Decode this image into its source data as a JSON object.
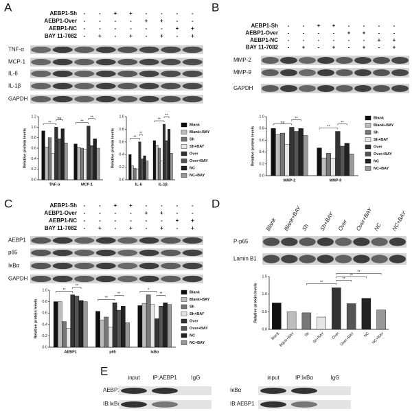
{
  "panels": [
    {
      "letter": "A",
      "treatments": [
        {
          "name": "AEBP1-Sh",
          "signs": [
            "-",
            "-",
            "+",
            "+",
            "-",
            "-",
            "-",
            "-"
          ]
        },
        {
          "name": "AEBP1-Over",
          "signs": [
            "-",
            "-",
            "-",
            "-",
            "+",
            "+",
            "-",
            "-"
          ]
        },
        {
          "name": "AEBP1-NC",
          "signs": [
            "-",
            "-",
            "-",
            "-",
            "-",
            "-",
            "+",
            "+"
          ]
        },
        {
          "name": "BAY 11-7082",
          "signs": [
            "-",
            "+",
            "-",
            "+",
            "-",
            "+",
            "-",
            "+"
          ]
        }
      ],
      "blots": [
        "TNF-α",
        "MCP-1",
        "IL-6",
        "IL-1β",
        "GAPDH"
      ]
    },
    {
      "letter": "B",
      "treatments": [
        {
          "name": "AEBP1-Sh",
          "signs": [
            "-",
            "-",
            "+",
            "+",
            "-",
            "-",
            "-",
            "-"
          ]
        },
        {
          "name": "AEBP1-Over",
          "signs": [
            "-",
            "-",
            "-",
            "-",
            "+",
            "+",
            "-",
            "-"
          ]
        },
        {
          "name": "AEBP1-NC",
          "signs": [
            "-",
            "-",
            "-",
            "-",
            "-",
            "-",
            "+",
            "+"
          ]
        },
        {
          "name": "BAY 11-7082",
          "signs": [
            "-",
            "+",
            "-",
            "+",
            "-",
            "+",
            "-",
            "+"
          ]
        }
      ],
      "blots": [
        "MMP-2",
        "MMP-9",
        "GAPDH"
      ]
    },
    {
      "letter": "C",
      "treatments": [
        {
          "name": "AEBP1-Sh",
          "signs": [
            "-",
            "-",
            "+",
            "+",
            "-",
            "-",
            "-",
            "-"
          ]
        },
        {
          "name": "AEBP1-Over",
          "signs": [
            "-",
            "-",
            "-",
            "-",
            "+",
            "+",
            "-",
            "-"
          ]
        },
        {
          "name": "AEBP1-NC",
          "signs": [
            "-",
            "-",
            "-",
            "-",
            "-",
            "-",
            "+",
            "+"
          ]
        },
        {
          "name": "BAY 11-7082",
          "signs": [
            "-",
            "+",
            "-",
            "+",
            "-",
            "+",
            "-",
            "+"
          ]
        }
      ],
      "blots": [
        "AEBP1",
        "p65",
        "IκBα",
        "GAPDH"
      ]
    },
    {
      "letter": "D",
      "lanes": [
        "Blank",
        "Blank+BAY",
        "Sh",
        "Sh+BAY",
        "Over",
        "Over+BAY",
        "NC",
        "NC+BAY"
      ],
      "blots": [
        "P-p65",
        "Lamin B1"
      ]
    },
    {
      "letter": "E",
      "blocks": [
        {
          "columns": [
            "input",
            "IP:AEBP1",
            "IgG"
          ],
          "rows": [
            "AEBP1",
            "IB:IκBα"
          ]
        },
        {
          "columns": [
            "input",
            "IP:IκBα",
            "IgG"
          ],
          "rows": [
            "IκBα",
            "IB:AEBP1"
          ]
        }
      ]
    }
  ],
  "chart_data": [
    {
      "type": "bar",
      "ylabel": "Relative protein levels",
      "categories": [
        "TNF-α",
        "MCP-1"
      ],
      "ylim": [
        0,
        1.2
      ],
      "yticks": [
        {
          "value": 0,
          "label": "0.0"
        },
        0.2,
        0.4,
        0.6,
        0.8,
        {
          "value": 1,
          "label": "1.0"
        },
        1.2
      ],
      "series": [
        {
          "color": "#111111",
          "values": [
            0.93,
            0.68
          ]
        },
        {
          "color": "#bdbdbd",
          "values": [
            0.62,
            0.62
          ]
        },
        {
          "color": "#777777",
          "values": [
            0.8,
            0.6
          ]
        },
        {
          "color": "#e6e6e6",
          "values": [
            0.5,
            0.58
          ]
        },
        {
          "color": "#333333",
          "values": [
            1.0,
            1.02
          ]
        },
        {
          "color": "#555555",
          "values": [
            0.78,
            0.65
          ]
        },
        {
          "color": "#222222",
          "values": [
            0.97,
            0.78
          ]
        },
        {
          "color": "#999999",
          "values": [
            0.7,
            0.6
          ]
        }
      ],
      "annotations": [
        {
          "label": "**",
          "category": 0,
          "from": 0,
          "to": 4
        },
        {
          "label": "ns",
          "category": 0,
          "from": 4,
          "to": 6
        },
        {
          "label": "**",
          "category": 1,
          "from": 0,
          "to": 4
        },
        {
          "label": "**",
          "category": 1,
          "from": 4,
          "to": 6
        }
      ]
    },
    {
      "type": "bar",
      "ylabel": "Relative protein levels",
      "categories": [
        "IL-6",
        "IL-1β"
      ],
      "legend": true,
      "ylim": [
        0,
        1.0
      ],
      "yticks": [
        {
          "value": 0,
          "label": "0.0"
        },
        0.2,
        0.4,
        0.6,
        0.8,
        {
          "value": 1,
          "label": "1.0"
        }
      ],
      "series": [
        {
          "name": "Blank",
          "color": "#111111",
          "values": [
            0.4,
            0.62
          ]
        },
        {
          "name": "Blank+BAY",
          "color": "#bdbdbd",
          "values": [
            0.22,
            0.55
          ]
        },
        {
          "name": "Sh",
          "color": "#777777",
          "values": [
            0.18,
            0.5
          ]
        },
        {
          "name": "Sh+BAY",
          "color": "#e6e6e6",
          "values": [
            0.17,
            0.3
          ]
        },
        {
          "name": "Over",
          "color": "#333333",
          "values": [
            0.6,
            0.88
          ]
        },
        {
          "name": "Over+BAY",
          "color": "#555555",
          "values": [
            0.33,
            0.62
          ]
        },
        {
          "name": "NC",
          "color": "#222222",
          "values": [
            0.38,
            0.8
          ]
        },
        {
          "name": "NC+BAY",
          "color": "#999999",
          "values": [
            0.3,
            0.42
          ]
        }
      ],
      "annotations": [
        {
          "label": "**",
          "category": 0,
          "from": 0,
          "to": 4
        },
        {
          "label": "**",
          "category": 0,
          "from": 4,
          "to": 5
        },
        {
          "label": "**",
          "category": 1,
          "from": 0,
          "to": 4
        },
        {
          "label": "**",
          "category": 1,
          "from": 4,
          "to": 6
        }
      ]
    },
    {
      "type": "bar",
      "ylabel": "Relative protein levels",
      "categories": [
        "MMP-2",
        "MMP-9"
      ],
      "legend": true,
      "ylim": [
        0,
        1.0
      ],
      "yticks": [
        {
          "value": 0,
          "label": "0.0"
        },
        0.2,
        0.4,
        0.6,
        0.8,
        {
          "value": 1,
          "label": "1.0"
        }
      ],
      "series": [
        {
          "name": "Blank",
          "color": "#111111",
          "values": [
            0.8,
            0.47
          ]
        },
        {
          "name": "Blank+BAY",
          "color": "#bdbdbd",
          "values": [
            0.7,
            0.3
          ]
        },
        {
          "name": "Sh",
          "color": "#777777",
          "values": [
            0.72,
            0.38
          ]
        },
        {
          "name": "Sh+BAY",
          "color": "#e6e6e6",
          "values": [
            0.53,
            0.3
          ]
        },
        {
          "name": "Over",
          "color": "#333333",
          "values": [
            0.82,
            0.75
          ]
        },
        {
          "name": "Over+BAY",
          "color": "#555555",
          "values": [
            0.75,
            0.5
          ]
        },
        {
          "name": "NC",
          "color": "#222222",
          "values": [
            0.8,
            0.55
          ]
        },
        {
          "name": "NC+BAY",
          "color": "#999999",
          "values": [
            0.68,
            0.37
          ]
        }
      ],
      "annotations": [
        {
          "label": "ns",
          "category": 0,
          "from": 0,
          "to": 4
        },
        {
          "label": "**",
          "category": 0,
          "from": 4,
          "to": 6
        },
        {
          "label": "**",
          "category": 1,
          "from": 0,
          "to": 4
        },
        {
          "label": "**",
          "category": 1,
          "from": 4,
          "to": 6
        }
      ]
    },
    {
      "type": "bar",
      "ylabel": "Relative protein levels",
      "categories": [
        "AEBP1",
        "p65",
        "IκBα"
      ],
      "legend": true,
      "ylim": [
        0,
        1.0
      ],
      "yticks": [
        {
          "value": 0,
          "label": "0.0"
        },
        0.2,
        0.4,
        0.6,
        0.8,
        {
          "value": 1,
          "label": "1.0"
        }
      ],
      "series": [
        {
          "name": "Blank",
          "color": "#111111",
          "values": [
            0.8,
            0.63,
            0.73
          ]
        },
        {
          "name": "Blank+BAY",
          "color": "#bdbdbd",
          "values": [
            0.8,
            0.48,
            0.77
          ]
        },
        {
          "name": "Sh",
          "color": "#777777",
          "values": [
            0.45,
            0.53,
            0.92
          ]
        },
        {
          "name": "Sh+BAY",
          "color": "#e6e6e6",
          "values": [
            0.33,
            0.35,
            0.75
          ]
        },
        {
          "name": "Over",
          "color": "#333333",
          "values": [
            0.92,
            0.78,
            0.5
          ]
        },
        {
          "name": "Over+BAY",
          "color": "#555555",
          "values": [
            0.9,
            0.65,
            0.72
          ]
        },
        {
          "name": "NC",
          "color": "#222222",
          "values": [
            0.82,
            0.72,
            0.78
          ]
        },
        {
          "name": "NC+BAY",
          "color": "#999999",
          "values": [
            0.8,
            0.43,
            0.75
          ]
        }
      ],
      "annotations": [
        {
          "label": "**",
          "category": 0,
          "from": 0,
          "to": 4
        },
        {
          "label": "**",
          "category": 0,
          "from": 4,
          "to": 6
        },
        {
          "label": "**",
          "category": 1,
          "from": 0,
          "to": 4
        },
        {
          "label": "**",
          "category": 1,
          "from": 4,
          "to": 6
        },
        {
          "label": "*",
          "category": 2,
          "from": 0,
          "to": 4
        },
        {
          "label": "**",
          "category": 2,
          "from": 4,
          "to": 6
        }
      ]
    },
    {
      "type": "bar",
      "ylabel": "Relative protein levels",
      "categories": [
        "Blank",
        "Blank+BAY",
        "Sh",
        "Sh+BAY",
        "Over",
        "Over+BAY",
        "NC",
        "NC+BAY"
      ],
      "values": [
        0.75,
        0.5,
        0.47,
        0.35,
        1.18,
        0.73,
        0.88,
        0.55
      ],
      "colors": [
        "#111111",
        "#bdbdbd",
        "#777777",
        "#e6e6e6",
        "#333333",
        "#555555",
        "#222222",
        "#999999"
      ],
      "ylim": [
        0,
        1.5
      ],
      "yticks": [
        {
          "value": 0,
          "label": "0.0"
        },
        0.5,
        {
          "value": 1,
          "label": "1.0"
        },
        1.5
      ],
      "annotations": [
        {
          "label": "**",
          "from": 2,
          "to": 4
        },
        {
          "label": "**",
          "from": 4,
          "to": 5
        },
        {
          "label": "**",
          "from": 4,
          "to": 6
        },
        {
          "label": "**",
          "from": 4,
          "to": 7
        }
      ]
    }
  ]
}
